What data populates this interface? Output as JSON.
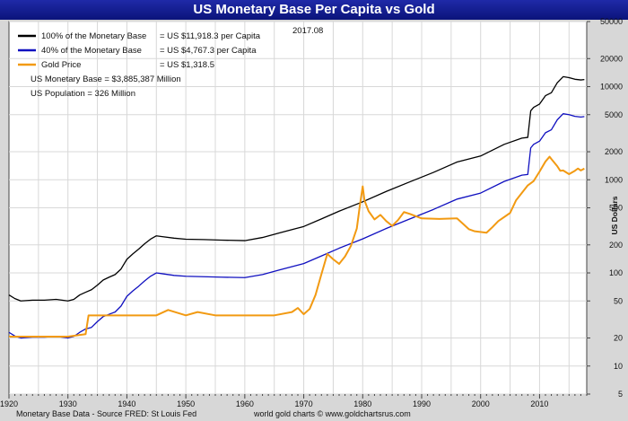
{
  "chart_data": {
    "type": "line",
    "title": "US Monetary Base Per Capita vs Gold",
    "date_label": "2017.08",
    "ylabel": "US Dollars",
    "y_scale": "log",
    "ylim": [
      5,
      50000
    ],
    "xlim": [
      1920,
      2018
    ],
    "x_ticks": [
      1920,
      1930,
      1940,
      1950,
      1960,
      1970,
      1980,
      1990,
      2000,
      2010
    ],
    "x_tick_labels": [
      "1920",
      "1930",
      "1940",
      "1950",
      "1960",
      "1970",
      "1980",
      "1990",
      "2000",
      "2010"
    ],
    "y_ticks": [
      5,
      10,
      20,
      50,
      100,
      200,
      500,
      1000,
      2000,
      5000,
      10000,
      20000,
      50000
    ],
    "y_tick_labels": [
      "5",
      "10",
      "20",
      "50",
      "100",
      "200",
      "500",
      "1000",
      "2000",
      "5000",
      "10000",
      "20000",
      "50000"
    ],
    "grid": true,
    "legend": [
      {
        "name": "100% of the Monetary Base",
        "value": "= US $11,918.3 per Capita",
        "color": "#000000"
      },
      {
        "name": "40% of the Monetary Base",
        "value": "= US $4,767.3 per Capita",
        "color": "#1010c0"
      },
      {
        "name": "Gold Price",
        "value": "= US $1,318.5",
        "color": "#f29a12"
      }
    ],
    "notes": [
      "US Monetary Base = $3,885,387 Million",
      "US Population = 326 Million"
    ],
    "series": [
      {
        "name": "100% of the Monetary Base",
        "color": "#000000",
        "x": [
          1920,
          1921,
          1922,
          1924,
          1926,
          1928,
          1930,
          1931,
          1932,
          1933,
          1934,
          1935,
          1936,
          1937,
          1938,
          1939,
          1940,
          1941,
          1942,
          1943,
          1944,
          1945,
          1946,
          1948,
          1950,
          1953,
          1956,
          1960,
          1963,
          1966,
          1970,
          1973,
          1976,
          1980,
          1984,
          1988,
          1992,
          1996,
          2000,
          2004,
          2007,
          2008,
          2008.5,
          2009,
          2010,
          2011,
          2012,
          2013,
          2014,
          2015,
          2016,
          2017,
          2017.6
        ],
        "y": [
          58,
          53,
          50,
          51,
          51,
          52,
          50,
          52,
          58,
          62,
          66,
          74,
          84,
          90,
          96,
          110,
          140,
          160,
          180,
          205,
          230,
          250,
          245,
          236,
          230,
          228,
          225,
          222,
          240,
          270,
          315,
          380,
          460,
          580,
          750,
          950,
          1200,
          1550,
          1800,
          2400,
          2800,
          2850,
          5500,
          6000,
          6500,
          8000,
          8600,
          11000,
          12800,
          12500,
          12000,
          11800,
          11918
        ]
      },
      {
        "name": "40% of the Monetary Base",
        "color": "#1010c0",
        "x": [
          1920,
          1921,
          1922,
          1924,
          1926,
          1928,
          1930,
          1931,
          1932,
          1933,
          1934,
          1935,
          1936,
          1937,
          1938,
          1939,
          1940,
          1941,
          1942,
          1943,
          1944,
          1945,
          1946,
          1948,
          1950,
          1953,
          1956,
          1960,
          1963,
          1966,
          1970,
          1973,
          1976,
          1980,
          1984,
          1988,
          1992,
          1996,
          2000,
          2004,
          2007,
          2008,
          2008.5,
          2009,
          2010,
          2011,
          2012,
          2013,
          2014,
          2015,
          2016,
          2017,
          2017.6
        ],
        "y": [
          23,
          21,
          20,
          20.4,
          20.4,
          20.8,
          20,
          20.8,
          23,
          25,
          26,
          30,
          34,
          36,
          38,
          44,
          56,
          64,
          72,
          82,
          92,
          100,
          98,
          94,
          92,
          91,
          90,
          89,
          96,
          108,
          126,
          152,
          184,
          232,
          300,
          380,
          480,
          620,
          720,
          960,
          1120,
          1140,
          2200,
          2400,
          2600,
          3200,
          3440,
          4400,
          5120,
          5000,
          4800,
          4720,
          4767
        ]
      },
      {
        "name": "Gold Price",
        "color": "#f29a12",
        "x": [
          1920,
          1925,
          1930,
          1933,
          1933.5,
          1934,
          1940,
          1945,
          1947,
          1950,
          1952,
          1955,
          1960,
          1965,
          1968,
          1969,
          1970,
          1971,
          1972,
          1973,
          1974,
          1975,
          1976,
          1977,
          1978,
          1979,
          1979.5,
          1980,
          1980.3,
          1981,
          1982,
          1983,
          1984,
          1985,
          1986,
          1987,
          1988,
          1990,
          1993,
          1996,
          1998,
          1999,
          2001,
          2002,
          2003,
          2005,
          2006,
          2008,
          2009,
          2010,
          2011,
          2011.7,
          2012,
          2013,
          2013.5,
          2014,
          2015,
          2016,
          2016.5,
          2017,
          2017.6
        ],
        "y": [
          20.67,
          20.67,
          20.67,
          22,
          35,
          35,
          35,
          35,
          40,
          35,
          38,
          35,
          35,
          35,
          38,
          42,
          36,
          41,
          58,
          97,
          160,
          140,
          125,
          150,
          195,
          300,
          520,
          850,
          600,
          460,
          375,
          420,
          360,
          320,
          370,
          450,
          430,
          385,
          380,
          385,
          295,
          280,
          270,
          310,
          360,
          440,
          600,
          870,
          970,
          1225,
          1570,
          1770,
          1670,
          1400,
          1250,
          1260,
          1150,
          1250,
          1320,
          1260,
          1318.5
        ]
      }
    ]
  },
  "footer": {
    "source": "Monetary Base Data - Source FRED: St Louis Fed",
    "credit": "world gold charts © www.goldchartsrus.com"
  }
}
